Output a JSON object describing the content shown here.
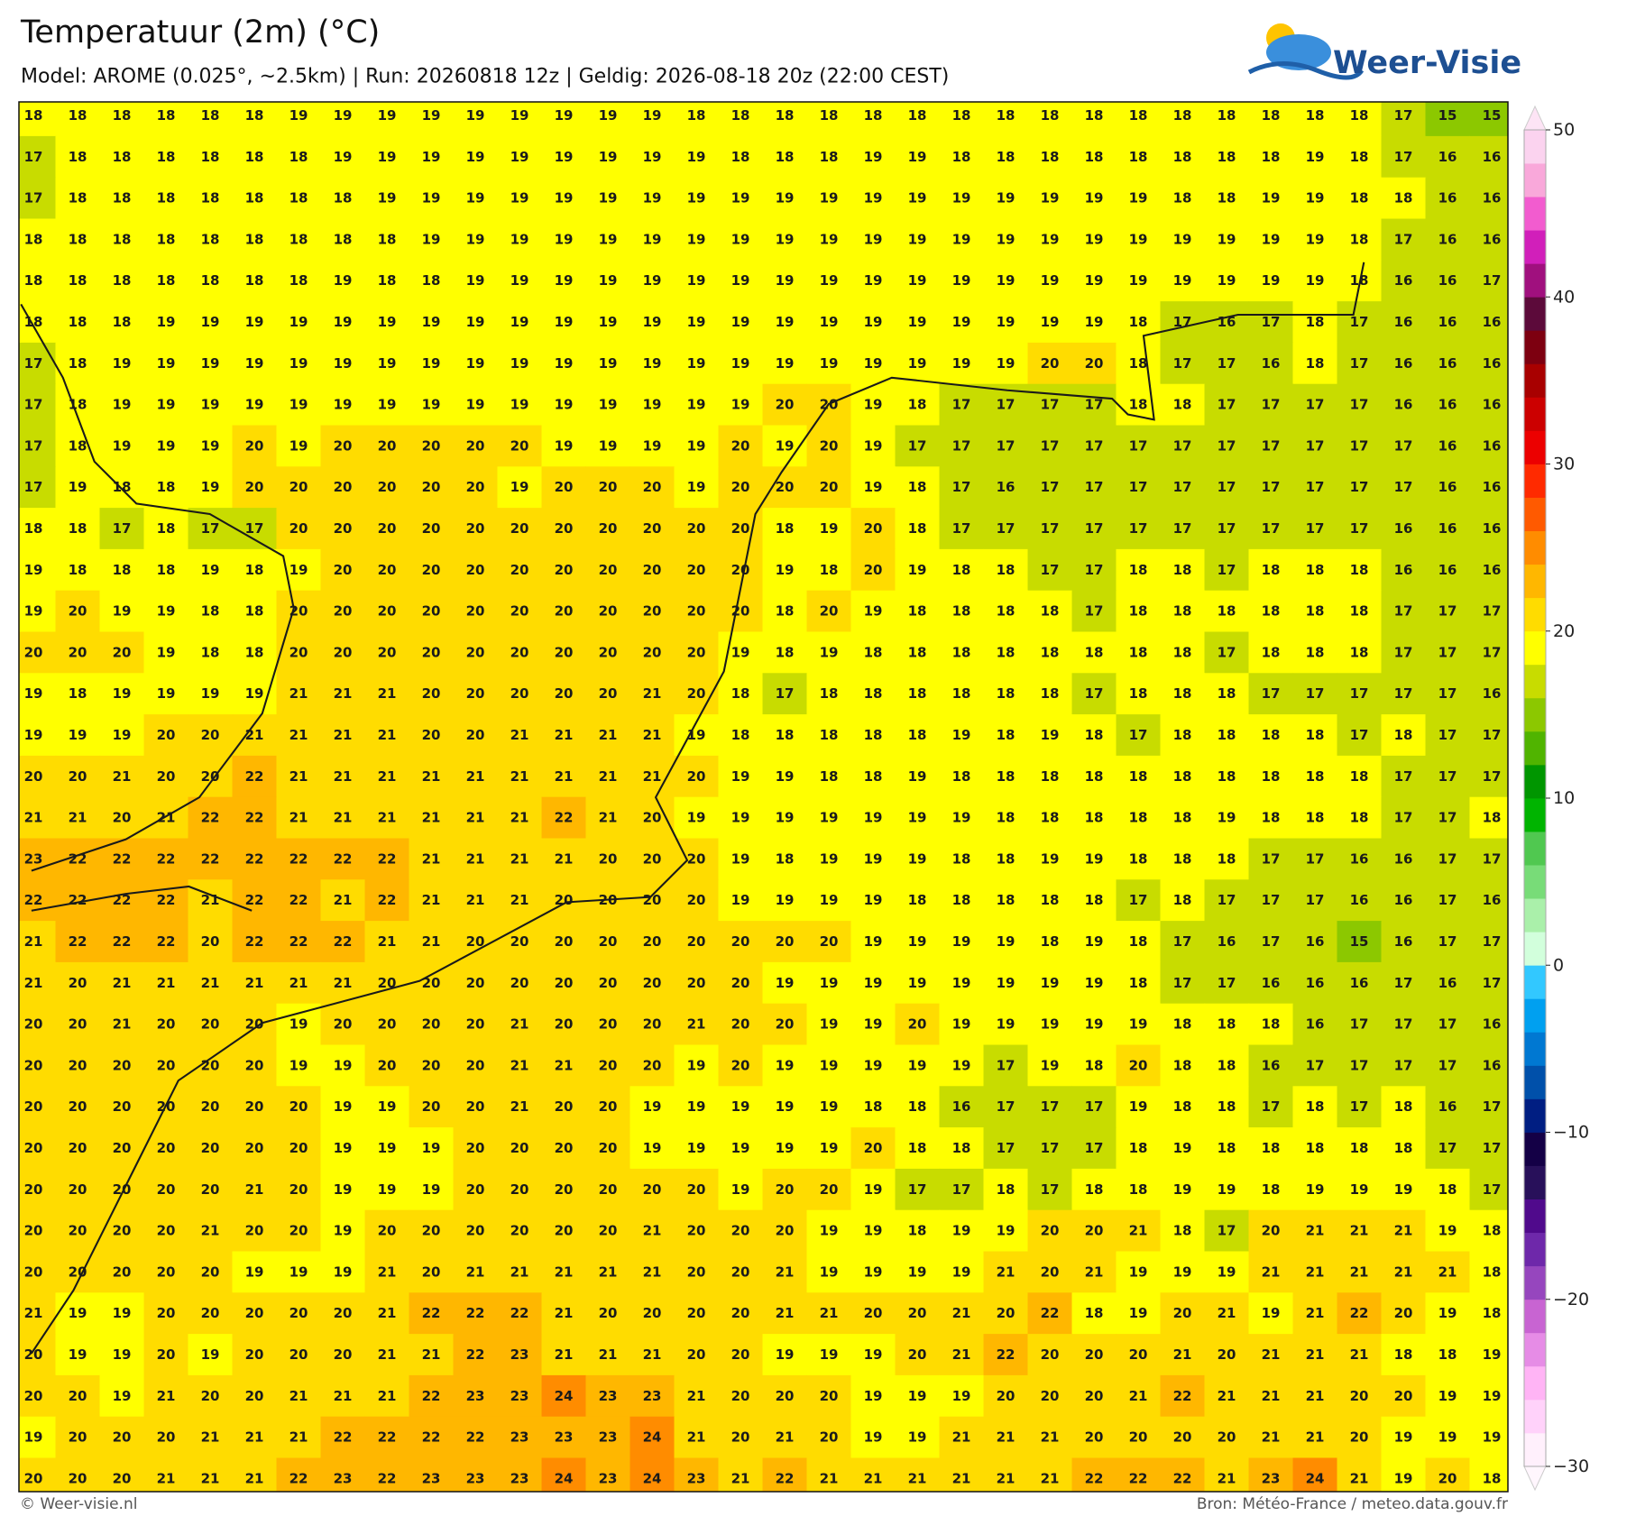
{
  "header": {
    "title": "Temperatuur (2m) (°C)",
    "subtitle": "Model: AROME (0.025°, ~2.5km)  |  Run: 20260818 12z  |  Geldig: 2026-08-18 20z (22:00 CEST)",
    "logo": "Weer-Visie"
  },
  "map": {
    "grid": [
      [
        18,
        18,
        18,
        18,
        18,
        18,
        19,
        19,
        19,
        19,
        19,
        19,
        19,
        19,
        19,
        18,
        18,
        18,
        18,
        18,
        18,
        18,
        18,
        18,
        18,
        18,
        18,
        18,
        18,
        18,
        18,
        17,
        15,
        15
      ],
      [
        17,
        18,
        18,
        18,
        18,
        18,
        18,
        19,
        19,
        19,
        19,
        19,
        19,
        19,
        19,
        19,
        18,
        18,
        18,
        19,
        19,
        18,
        18,
        18,
        18,
        18,
        18,
        18,
        18,
        19,
        18,
        17,
        16,
        16
      ],
      [
        17,
        18,
        18,
        18,
        18,
        18,
        18,
        18,
        19,
        19,
        19,
        19,
        19,
        19,
        19,
        19,
        19,
        19,
        19,
        19,
        19,
        19,
        19,
        19,
        19,
        19,
        18,
        18,
        19,
        19,
        18,
        18,
        16,
        16
      ],
      [
        18,
        18,
        18,
        18,
        18,
        18,
        18,
        18,
        18,
        19,
        19,
        19,
        19,
        19,
        19,
        19,
        19,
        19,
        19,
        19,
        19,
        19,
        19,
        19,
        19,
        19,
        19,
        19,
        19,
        19,
        18,
        17,
        16,
        16
      ],
      [
        18,
        18,
        18,
        18,
        18,
        18,
        18,
        19,
        18,
        18,
        19,
        19,
        19,
        19,
        19,
        19,
        19,
        19,
        19,
        19,
        19,
        19,
        19,
        19,
        19,
        19,
        19,
        19,
        19,
        19,
        18,
        16,
        16,
        17
      ],
      [
        18,
        18,
        18,
        19,
        19,
        19,
        19,
        19,
        19,
        19,
        19,
        19,
        19,
        19,
        19,
        19,
        19,
        19,
        19,
        19,
        19,
        19,
        19,
        19,
        19,
        18,
        17,
        16,
        17,
        18,
        17,
        16,
        16,
        16
      ],
      [
        17,
        18,
        19,
        19,
        19,
        19,
        19,
        19,
        19,
        19,
        19,
        19,
        19,
        19,
        19,
        19,
        19,
        19,
        19,
        19,
        19,
        19,
        19,
        20,
        20,
        18,
        17,
        17,
        16,
        18,
        17,
        16,
        16,
        16
      ],
      [
        17,
        18,
        19,
        19,
        19,
        19,
        19,
        19,
        19,
        19,
        19,
        19,
        19,
        19,
        19,
        19,
        19,
        20,
        20,
        19,
        18,
        17,
        17,
        17,
        17,
        18,
        18,
        17,
        17,
        17,
        17,
        16,
        16,
        16
      ],
      [
        17,
        18,
        19,
        19,
        19,
        20,
        19,
        20,
        20,
        20,
        20,
        20,
        19,
        19,
        19,
        19,
        20,
        19,
        20,
        19,
        17,
        17,
        17,
        17,
        17,
        17,
        17,
        17,
        17,
        17,
        17,
        17,
        16,
        16
      ],
      [
        17,
        19,
        18,
        18,
        19,
        20,
        20,
        20,
        20,
        20,
        20,
        19,
        20,
        20,
        20,
        19,
        20,
        20,
        20,
        19,
        18,
        17,
        16,
        17,
        17,
        17,
        17,
        17,
        17,
        17,
        17,
        17,
        16,
        16
      ],
      [
        18,
        18,
        17,
        18,
        17,
        17,
        20,
        20,
        20,
        20,
        20,
        20,
        20,
        20,
        20,
        20,
        20,
        18,
        19,
        20,
        18,
        17,
        17,
        17,
        17,
        17,
        17,
        17,
        17,
        17,
        17,
        16,
        16,
        16
      ],
      [
        19,
        18,
        18,
        18,
        19,
        18,
        19,
        20,
        20,
        20,
        20,
        20,
        20,
        20,
        20,
        20,
        20,
        19,
        18,
        20,
        19,
        18,
        18,
        17,
        17,
        18,
        18,
        17,
        18,
        18,
        18,
        16,
        16,
        16
      ],
      [
        19,
        20,
        19,
        19,
        18,
        18,
        20,
        20,
        20,
        20,
        20,
        20,
        20,
        20,
        20,
        20,
        20,
        18,
        20,
        19,
        18,
        18,
        18,
        18,
        17,
        18,
        18,
        18,
        18,
        18,
        18,
        17,
        17,
        17
      ],
      [
        20,
        20,
        20,
        19,
        18,
        18,
        20,
        20,
        20,
        20,
        20,
        20,
        20,
        20,
        20,
        20,
        19,
        18,
        19,
        18,
        18,
        18,
        18,
        18,
        18,
        18,
        18,
        17,
        18,
        18,
        18,
        17,
        17,
        17
      ],
      [
        19,
        18,
        19,
        19,
        19,
        19,
        21,
        21,
        21,
        20,
        20,
        20,
        20,
        20,
        21,
        20,
        18,
        17,
        18,
        18,
        18,
        18,
        18,
        18,
        17,
        18,
        18,
        18,
        17,
        17,
        17,
        17,
        17,
        16
      ],
      [
        19,
        19,
        19,
        20,
        20,
        21,
        21,
        21,
        21,
        20,
        20,
        21,
        21,
        21,
        21,
        19,
        18,
        18,
        18,
        18,
        18,
        19,
        18,
        19,
        18,
        17,
        18,
        18,
        18,
        18,
        17,
        18,
        17,
        17
      ],
      [
        20,
        20,
        21,
        20,
        20,
        22,
        21,
        21,
        21,
        21,
        21,
        21,
        21,
        21,
        21,
        20,
        19,
        19,
        18,
        18,
        19,
        18,
        18,
        18,
        18,
        18,
        18,
        18,
        18,
        18,
        18,
        17,
        17,
        17
      ],
      [
        21,
        21,
        20,
        21,
        22,
        22,
        21,
        21,
        21,
        21,
        21,
        21,
        22,
        21,
        20,
        19,
        19,
        19,
        19,
        19,
        19,
        19,
        18,
        18,
        18,
        18,
        18,
        19,
        18,
        18,
        18,
        17,
        17,
        18
      ],
      [
        23,
        22,
        22,
        22,
        22,
        22,
        22,
        22,
        22,
        21,
        21,
        21,
        21,
        20,
        20,
        20,
        19,
        18,
        19,
        19,
        19,
        18,
        18,
        19,
        19,
        18,
        18,
        18,
        17,
        17,
        16,
        16,
        17,
        17
      ],
      [
        22,
        22,
        22,
        22,
        21,
        22,
        22,
        21,
        22,
        21,
        21,
        21,
        20,
        20,
        20,
        20,
        19,
        19,
        19,
        19,
        18,
        18,
        18,
        18,
        18,
        17,
        18,
        17,
        17,
        17,
        16,
        16,
        17,
        16
      ],
      [
        21,
        22,
        22,
        22,
        20,
        22,
        22,
        22,
        21,
        21,
        20,
        20,
        20,
        20,
        20,
        20,
        20,
        20,
        20,
        19,
        19,
        19,
        19,
        18,
        19,
        18,
        17,
        16,
        17,
        16,
        15,
        16,
        17,
        17
      ],
      [
        21,
        20,
        21,
        21,
        21,
        21,
        21,
        21,
        20,
        20,
        20,
        20,
        20,
        20,
        20,
        20,
        20,
        19,
        19,
        19,
        19,
        19,
        19,
        19,
        19,
        18,
        17,
        17,
        16,
        16,
        16,
        17,
        16,
        17
      ],
      [
        20,
        20,
        21,
        20,
        20,
        20,
        19,
        20,
        20,
        20,
        20,
        21,
        20,
        20,
        20,
        21,
        20,
        20,
        19,
        19,
        20,
        19,
        19,
        19,
        19,
        19,
        18,
        18,
        18,
        16,
        17,
        17,
        17,
        16
      ],
      [
        20,
        20,
        20,
        20,
        20,
        20,
        19,
        19,
        20,
        20,
        20,
        21,
        21,
        20,
        20,
        19,
        20,
        19,
        19,
        19,
        19,
        19,
        17,
        19,
        18,
        20,
        18,
        18,
        16,
        17,
        17,
        17,
        17,
        16
      ],
      [
        20,
        20,
        20,
        20,
        20,
        20,
        20,
        19,
        19,
        20,
        20,
        21,
        20,
        20,
        19,
        19,
        19,
        19,
        19,
        18,
        18,
        16,
        17,
        17,
        17,
        19,
        18,
        18,
        17,
        18,
        17,
        18,
        16,
        17
      ],
      [
        20,
        20,
        20,
        20,
        20,
        20,
        20,
        19,
        19,
        19,
        20,
        20,
        20,
        20,
        19,
        19,
        19,
        19,
        19,
        20,
        18,
        18,
        17,
        17,
        17,
        18,
        19,
        18,
        18,
        18,
        18,
        18,
        17,
        17
      ],
      [
        20,
        20,
        20,
        20,
        20,
        21,
        20,
        19,
        19,
        19,
        20,
        20,
        20,
        20,
        20,
        20,
        19,
        20,
        20,
        19,
        17,
        17,
        18,
        17,
        18,
        18,
        19,
        19,
        18,
        19,
        19,
        19,
        18,
        17
      ],
      [
        20,
        20,
        20,
        20,
        21,
        20,
        20,
        19,
        20,
        20,
        20,
        20,
        20,
        20,
        21,
        20,
        20,
        20,
        19,
        19,
        18,
        19,
        19,
        20,
        20,
        21,
        18,
        17,
        20,
        21,
        21,
        21,
        19,
        18
      ],
      [
        20,
        20,
        20,
        20,
        20,
        19,
        19,
        19,
        21,
        20,
        21,
        21,
        21,
        21,
        21,
        20,
        20,
        21,
        19,
        19,
        19,
        19,
        21,
        20,
        21,
        19,
        19,
        19,
        21,
        21,
        21,
        21,
        21,
        18
      ],
      [
        21,
        19,
        19,
        20,
        20,
        20,
        20,
        20,
        21,
        22,
        22,
        22,
        21,
        20,
        20,
        20,
        20,
        21,
        21,
        20,
        20,
        21,
        20,
        22,
        18,
        19,
        20,
        21,
        19,
        21,
        22,
        20,
        19,
        18
      ],
      [
        20,
        19,
        19,
        20,
        19,
        20,
        20,
        20,
        21,
        21,
        22,
        23,
        21,
        21,
        21,
        20,
        20,
        19,
        19,
        19,
        20,
        21,
        22,
        20,
        20,
        20,
        21,
        20,
        21,
        21,
        21,
        18,
        18,
        19
      ],
      [
        20,
        20,
        19,
        21,
        20,
        20,
        21,
        21,
        21,
        22,
        23,
        23,
        24,
        23,
        23,
        21,
        20,
        20,
        20,
        19,
        19,
        19,
        20,
        20,
        20,
        21,
        22,
        21,
        21,
        21,
        20,
        20,
        19,
        19
      ],
      [
        19,
        20,
        20,
        20,
        21,
        21,
        21,
        22,
        22,
        22,
        22,
        23,
        23,
        23,
        24,
        21,
        20,
        21,
        20,
        19,
        19,
        21,
        21,
        21,
        20,
        20,
        20,
        20,
        21,
        21,
        20,
        19,
        19,
        19
      ],
      [
        20,
        20,
        20,
        21,
        21,
        21,
        22,
        23,
        22,
        23,
        23,
        23,
        24,
        23,
        24,
        23,
        21,
        22,
        21,
        21,
        21,
        21,
        21,
        21,
        22,
        22,
        22,
        21,
        23,
        24,
        21,
        19,
        20,
        18
      ]
    ]
  },
  "colorbar": {
    "lim": [
      -30,
      50
    ],
    "ticks": [
      50,
      40,
      30,
      20,
      10,
      0,
      {
        "value": -10,
        "label": "−10"
      },
      {
        "value": -20,
        "label": "−20"
      },
      {
        "value": -30,
        "label": "−30"
      }
    ],
    "colors": [
      "#fff0fc",
      "#ffd2fa",
      "#ffb4f5",
      "#e68ce6",
      "#c864d2",
      "#9646be",
      "#6e28aa",
      "#500a8c",
      "#28105a",
      "#140046",
      "#001e82",
      "#0050aa",
      "#0078d2",
      "#00a0f0",
      "#32c8ff",
      "#d2ffdc",
      "#aaf0aa",
      "#78dc78",
      "#50c850",
      "#00b400",
      "#009600",
      "#50b400",
      "#8cc800",
      "#c8dc00",
      "#ffff00",
      "#ffdc00",
      "#ffb700",
      "#ff8c00",
      "#ff5a00",
      "#ff2a00",
      "#ec0000",
      "#cc0000",
      "#a80000",
      "#7d0010",
      "#5c0a3a",
      "#a0107e",
      "#d11fba",
      "#f25ccf",
      "#f9a8da",
      "#fbd3ef"
    ]
  },
  "footer": {
    "left": "© Weer-visie.nl",
    "right": "Bron: Météo-France / meteo.data.gouv.fr"
  }
}
